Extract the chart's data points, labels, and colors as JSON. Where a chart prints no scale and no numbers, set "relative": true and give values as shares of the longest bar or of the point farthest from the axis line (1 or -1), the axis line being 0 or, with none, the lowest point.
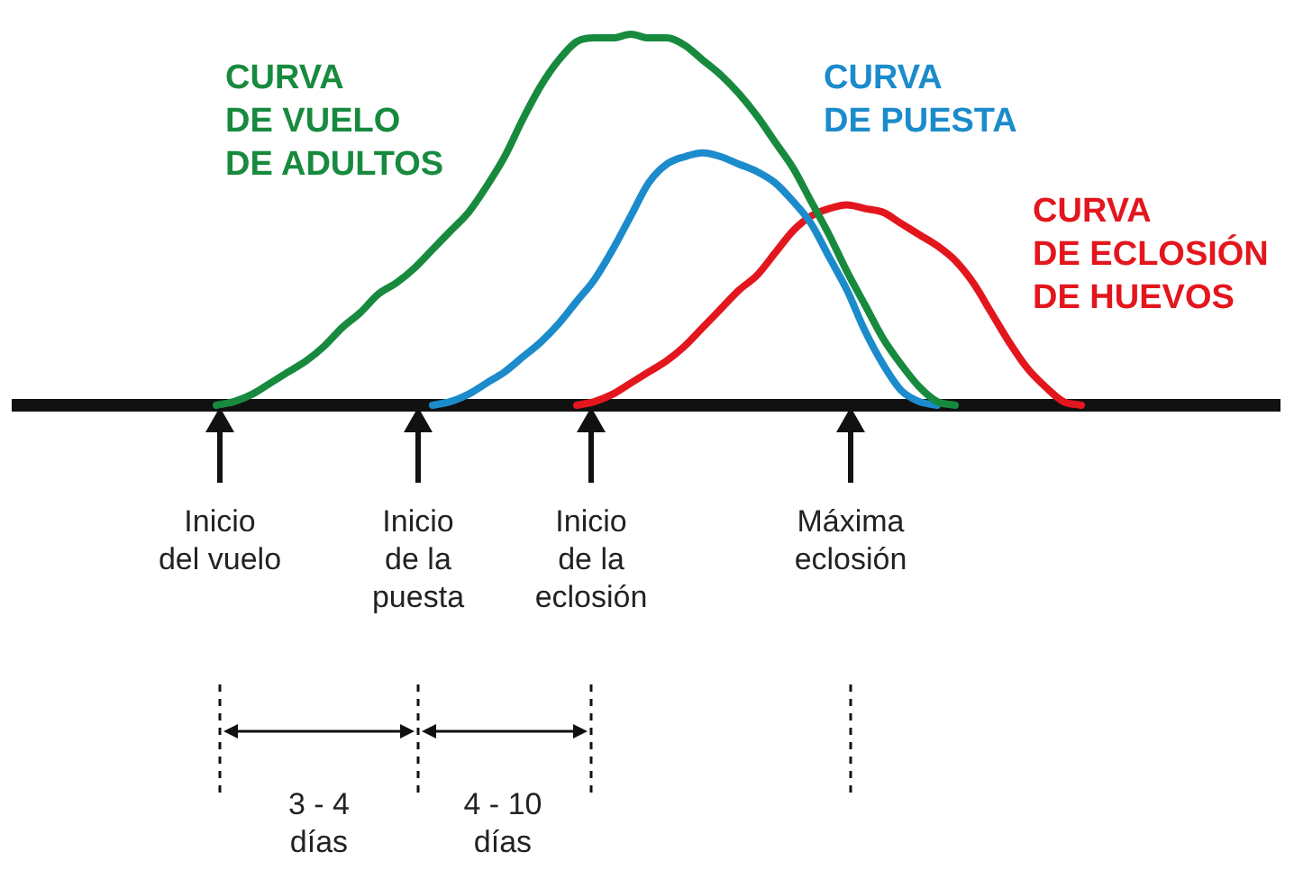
{
  "chart_data": {
    "type": "line",
    "relative": true,
    "legend": false,
    "marker": "none",
    "line_style": "solid",
    "categories": [
      null,
      null,
      null,
      null,
      null,
      null,
      null,
      null,
      null,
      null,
      null,
      null,
      null,
      null,
      null,
      null,
      null,
      null,
      null,
      null,
      null,
      null,
      null,
      null,
      null,
      null,
      null,
      null,
      null,
      null,
      null,
      null,
      null,
      null,
      null,
      null,
      null,
      null,
      null,
      null,
      null,
      null,
      null,
      null,
      null,
      null,
      null,
      null,
      null,
      null,
      null,
      null,
      null,
      null,
      null,
      null,
      null,
      null,
      null,
      null,
      null,
      null,
      null,
      null,
      null,
      null,
      null,
      null,
      null,
      null,
      null
    ],
    "series": [
      {
        "name": "CURVA\nDE VUELO\nDE ADULTOS",
        "color": "#178a3e",
        "values": [
          null,
          null,
          null,
          null,
          null,
          null,
          null,
          null,
          null,
          null,
          null,
          0,
          0.01,
          0.03,
          0.06,
          0.09,
          0.12,
          0.16,
          0.21,
          0.25,
          0.3,
          0.33,
          0.37,
          0.42,
          0.47,
          0.52,
          0.59,
          0.67,
          0.77,
          0.86,
          0.93,
          0.98,
          0.99,
          0.99,
          1,
          0.99,
          0.99,
          0.97,
          0.93,
          0.89,
          0.84,
          0.78,
          0.71,
          0.64,
          0.55,
          0.46,
          0.36,
          0.27,
          0.18,
          0.11,
          0.05,
          0.01,
          0,
          null,
          null,
          null,
          null,
          null,
          null,
          null,
          null,
          null,
          null,
          null,
          null,
          null,
          null,
          null,
          null,
          null,
          null
        ]
      },
      {
        "name": "CURVA\nDE PUESTA",
        "color": "#1b8bcb",
        "values": [
          null,
          null,
          null,
          null,
          null,
          null,
          null,
          null,
          null,
          null,
          null,
          null,
          null,
          null,
          null,
          null,
          null,
          null,
          null,
          null,
          null,
          null,
          null,
          0,
          0.01,
          0.03,
          0.06,
          0.09,
          0.13,
          0.17,
          0.22,
          0.28,
          0.34,
          0.42,
          0.51,
          0.6,
          0.65,
          0.67,
          0.68,
          0.67,
          0.65,
          0.63,
          0.6,
          0.55,
          0.49,
          0.4,
          0.31,
          0.2,
          0.11,
          0.04,
          0.01,
          0,
          null,
          null,
          null,
          null,
          null,
          null,
          null,
          null,
          null,
          null,
          null,
          null,
          null,
          null,
          null,
          null,
          null,
          null,
          null
        ]
      },
      {
        "name": "CURVA\nDE ECLOSIÓN\nDE HUEVOS",
        "color": "#e3161d",
        "values": [
          null,
          null,
          null,
          null,
          null,
          null,
          null,
          null,
          null,
          null,
          null,
          null,
          null,
          null,
          null,
          null,
          null,
          null,
          null,
          null,
          null,
          null,
          null,
          null,
          null,
          null,
          null,
          null,
          null,
          null,
          null,
          0,
          0.01,
          0.03,
          0.06,
          0.09,
          0.12,
          0.16,
          0.21,
          0.26,
          0.31,
          0.35,
          0.41,
          0.47,
          0.51,
          0.53,
          0.54,
          0.53,
          0.52,
          0.49,
          0.46,
          0.43,
          0.39,
          0.33,
          0.25,
          0.17,
          0.1,
          0.05,
          0.01,
          0,
          null,
          null,
          null,
          null,
          null,
          null,
          null,
          null,
          null,
          null,
          null
        ]
      }
    ],
    "annotations": [
      "Inicio\ndel vuelo",
      "Inicio\nde la\npuesta",
      "Inicio\nde la\neclosión",
      "Máxima\neclosión",
      "3 - 4\ndías",
      "4 - 10\ndías"
    ]
  }
}
